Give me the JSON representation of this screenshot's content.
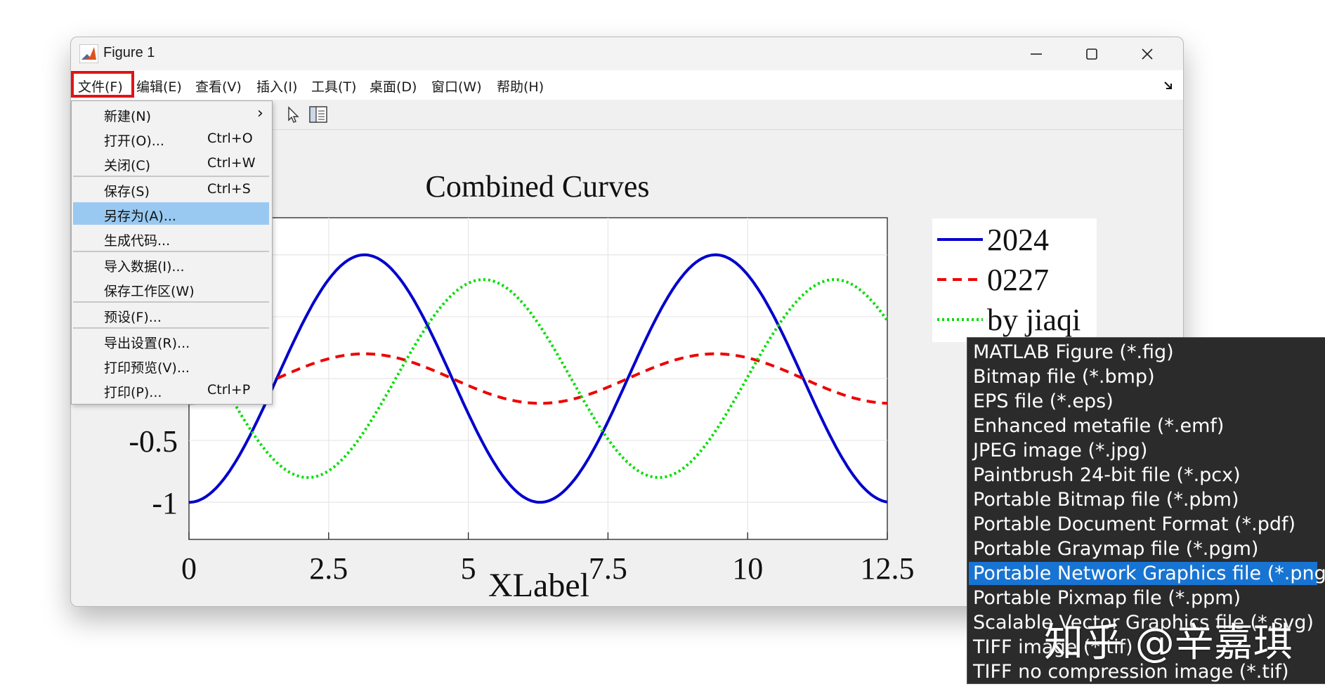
{
  "window": {
    "title": "Figure 1",
    "controls": {
      "minimize": "minimize-icon",
      "maximize": "maximize-icon",
      "close": "close-icon"
    }
  },
  "menubar": {
    "items": [
      "文件(F)",
      "编辑(E)",
      "查看(V)",
      "插入(I)",
      "工具(T)",
      "桌面(D)",
      "窗口(W)",
      "帮助(H)"
    ],
    "active": "文件(F)"
  },
  "file_menu": {
    "items": [
      {
        "label": "新建(N)",
        "shortcut": "",
        "submenu": true
      },
      {
        "label": "打开(O)...",
        "shortcut": "Ctrl+O"
      },
      {
        "label": "关闭(C)",
        "shortcut": "Ctrl+W"
      },
      {
        "label": "保存(S)",
        "shortcut": "Ctrl+S"
      },
      {
        "label": "另存为(A)...",
        "shortcut": "",
        "selected": true
      },
      {
        "label": "生成代码...",
        "shortcut": ""
      },
      {
        "label": "导入数据(I)...",
        "shortcut": ""
      },
      {
        "label": "保存工作区(W)",
        "shortcut": ""
      },
      {
        "label": "预设(F)...",
        "shortcut": ""
      },
      {
        "label": "导出设置(R)...",
        "shortcut": ""
      },
      {
        "label": "打印预览(V)...",
        "shortcut": ""
      },
      {
        "label": "打印(P)...",
        "shortcut": "Ctrl+P"
      }
    ],
    "submenu_arrow": "›"
  },
  "save_formats": {
    "items": [
      "MATLAB Figure (*.fig)",
      "Bitmap file (*.bmp)",
      "EPS file (*.eps)",
      "Enhanced metafile (*.emf)",
      "JPEG image (*.jpg)",
      "Paintbrush 24-bit file (*.pcx)",
      "Portable Bitmap file (*.pbm)",
      "Portable Document Format (*.pdf)",
      "Portable Graymap file (*.pgm)",
      "Portable Network Graphics file (*.png)",
      "Portable Pixmap file (*.ppm)",
      "Scalable Vector Graphics file (*.svg)",
      "TIFF image (*.tif)",
      "TIFF no compression image (*.tif)"
    ],
    "selected": "Portable Network Graphics file (*.png)"
  },
  "watermark": "知乎 @辛嘉琪",
  "chart_data": {
    "type": "line",
    "title": "Combined Curves",
    "xlabel": "XLabel",
    "ylabel": "",
    "xlim": [
      0,
      12.5
    ],
    "ylim": [
      -1.3,
      1.3
    ],
    "x_ticks": [
      "0",
      "2.5",
      "5",
      "7.5",
      "10",
      "12.5"
    ],
    "y_ticks": [
      "-0.5",
      "-1"
    ],
    "grid": true,
    "legend_position": "outside-right",
    "series": [
      {
        "name": "2024",
        "formula": "-cos(x)",
        "color": "#0000cc",
        "style": "solid"
      },
      {
        "name": "0227",
        "formula": "-0.2*cos(x)+0.01",
        "color": "#ee0000",
        "style": "dashed"
      },
      {
        "name": "by jiaqi",
        "formula": "sin(x-1/3*pi)... approx sin(x-3.7)",
        "color": "#00dd00",
        "style": "dotted"
      }
    ],
    "x": [
      0,
      0.5,
      1,
      1.5,
      2,
      2.5,
      3,
      3.5,
      4,
      4.5,
      5,
      5.5,
      6,
      6.5,
      7,
      7.5,
      8,
      8.5,
      9,
      9.5,
      10,
      10.5,
      11,
      11.5,
      12,
      12.5
    ],
    "series_values": {
      "2024": [
        -1,
        -0.88,
        -0.54,
        -0.07,
        0.42,
        0.8,
        0.99,
        0.94,
        0.65,
        0.21,
        -0.28,
        -0.71,
        -0.96,
        -0.98,
        -0.75,
        -0.35,
        0.15,
        0.6,
        0.91,
        1.0,
        0.84,
        0.48,
        0.0,
        -0.48,
        -0.84,
        -1.0
      ]
    }
  }
}
